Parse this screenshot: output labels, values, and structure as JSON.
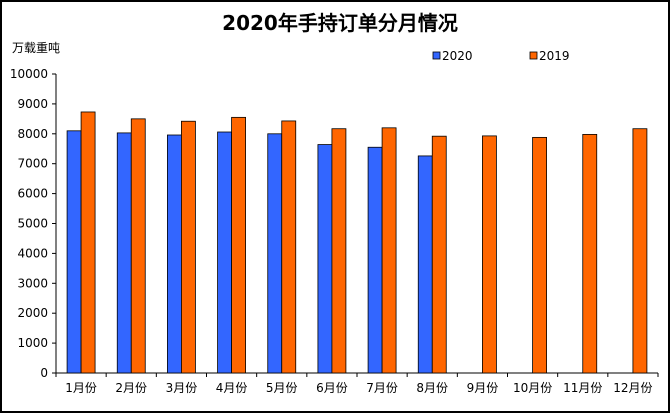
{
  "chart_data": {
    "type": "bar",
    "title": "2020年手持订单分月情况",
    "ylabel": "万载重吨",
    "xlabel": "",
    "ylim": [
      0,
      10000
    ],
    "yticks": [
      0,
      1000,
      2000,
      3000,
      4000,
      5000,
      6000,
      7000,
      8000,
      9000,
      10000
    ],
    "categories": [
      "1月份",
      "2月份",
      "3月份",
      "4月份",
      "5月份",
      "6月份",
      "7月份",
      "8月份",
      "9月份",
      "10月份",
      "11月份",
      "12月份"
    ],
    "series": [
      {
        "name": "2020",
        "color": "#3366ff",
        "values": [
          8100,
          8030,
          7960,
          8060,
          8000,
          7640,
          7550,
          7260,
          null,
          null,
          null,
          null
        ]
      },
      {
        "name": "2019",
        "color": "#ff6600",
        "values": [
          8730,
          8500,
          8420,
          8550,
          8430,
          8170,
          8200,
          7920,
          7930,
          7880,
          7980,
          8170
        ]
      }
    ],
    "legend_position": "top-right",
    "grid": false
  }
}
